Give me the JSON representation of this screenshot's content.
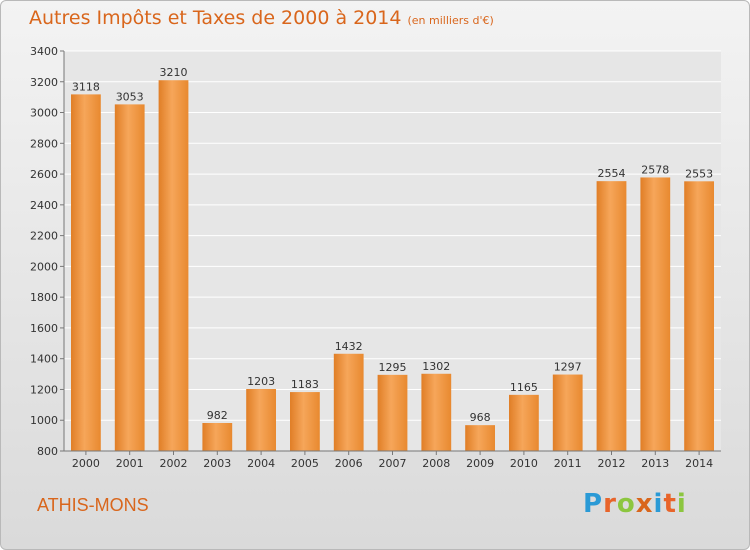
{
  "header": {
    "title": "Autres Impôts et Taxes de 2000 à 2014",
    "unit": "(en milliers d'€)"
  },
  "footer": {
    "city": "ATHIS-MONS",
    "logo_text": "Proxiti"
  },
  "colors": {
    "accent": "#d9661c",
    "bar_light": "#f6a65a",
    "bar_dark": "#e07e26",
    "logo": [
      "#2a9ad6",
      "#e8642a",
      "#8cc63f",
      "#d9661c",
      "#2a9ad6",
      "#e8642a",
      "#8cc63f"
    ]
  },
  "chart_data": {
    "type": "bar",
    "title": "Autres Impôts et Taxes de 2000 à 2014",
    "subtitle": "(en milliers d'€)",
    "xlabel": "",
    "ylabel": "",
    "categories": [
      "2000",
      "2001",
      "2002",
      "2003",
      "2004",
      "2005",
      "2006",
      "2007",
      "2008",
      "2009",
      "2010",
      "2011",
      "2012",
      "2013",
      "2014"
    ],
    "values": [
      3118,
      3053,
      3210,
      982,
      1203,
      1183,
      1432,
      1295,
      1302,
      968,
      1165,
      1297,
      2554,
      2578,
      2553
    ],
    "ylim": [
      800,
      3400
    ],
    "yticks": [
      800,
      1000,
      1200,
      1400,
      1600,
      1800,
      2000,
      2200,
      2400,
      2600,
      2800,
      3000,
      3200,
      3400
    ],
    "grid": true,
    "legend": "none"
  }
}
